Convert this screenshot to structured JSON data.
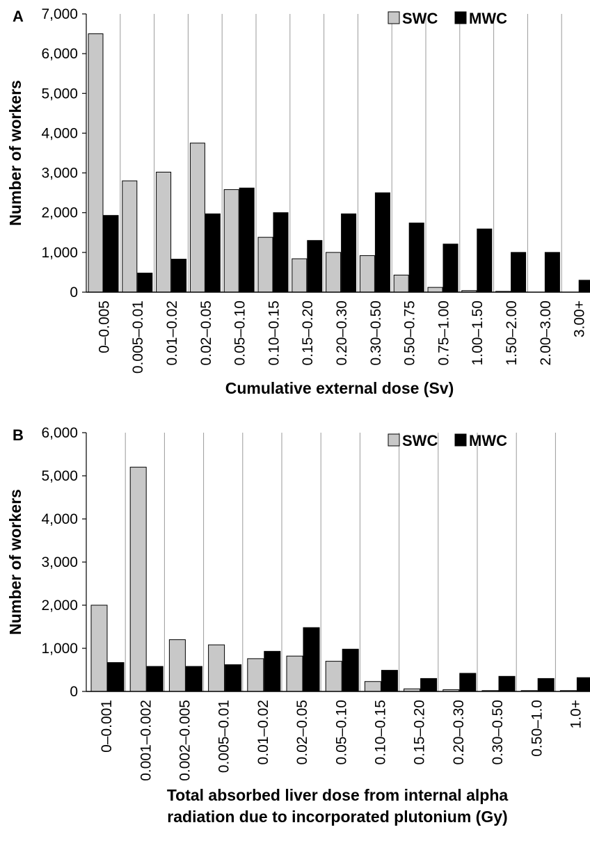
{
  "chart_data": [
    {
      "panel": "A",
      "type": "bar",
      "xlabel": "Cumulative external dose (Sv)",
      "ylabel": "Number of workers",
      "ylim": [
        0,
        7000
      ],
      "yticks": [
        "0",
        "1,000",
        "2,000",
        "3,000",
        "4,000",
        "5,000",
        "6,000",
        "7,000"
      ],
      "grid": "vertical lines between categories",
      "legend_position": "top-right",
      "categories": [
        "0–0.005",
        "0.005–0.01",
        "0.01–0.02",
        "0.02–0.05",
        "0.05–0.10",
        "0.10–0.15",
        "0.15–0.20",
        "0.20–0.30",
        "0.30–0.50",
        "0.50–0.75",
        "0.75–1.00",
        "1.00–1.50",
        "1.50–2.00",
        "2.00–3.00",
        "3.00+"
      ],
      "series": [
        {
          "name": "SWC",
          "color": "#c8c8c8",
          "values": [
            6500,
            2800,
            3020,
            3750,
            2580,
            1380,
            840,
            1000,
            920,
            430,
            120,
            40,
            20,
            0,
            0
          ]
        },
        {
          "name": "MWC",
          "color": "#000000",
          "values": [
            1930,
            480,
            830,
            1970,
            2620,
            2000,
            1300,
            1970,
            2500,
            1740,
            1210,
            1590,
            1000,
            1000,
            300
          ]
        }
      ]
    },
    {
      "panel": "B",
      "type": "bar",
      "xlabel": [
        "Total absorbed liver dose from internal alpha",
        "radiation due to incorporated plutonium (Gy)"
      ],
      "ylabel": "Number of workers",
      "ylim": [
        0,
        6000
      ],
      "yticks": [
        "0",
        "1,000",
        "2,000",
        "3,000",
        "4,000",
        "5,000",
        "6,000"
      ],
      "grid": "vertical lines between categories",
      "legend_position": "top-right",
      "categories": [
        "0–0.001",
        "0.001–0.002",
        "0.002–0.005",
        "0.005–0.01",
        "0.01–0.02",
        "0.02–0.05",
        "0.05–0.10",
        "0.10–0.15",
        "0.15–0.20",
        "0.20–0.30",
        "0.30–0.50",
        "0.50–1.0",
        "1.0+"
      ],
      "series": [
        {
          "name": "SWC",
          "color": "#c8c8c8",
          "values": [
            2000,
            5200,
            1200,
            1080,
            760,
            820,
            700,
            230,
            60,
            40,
            20,
            20,
            20
          ]
        },
        {
          "name": "MWC",
          "color": "#000000",
          "values": [
            670,
            580,
            580,
            620,
            930,
            1480,
            980,
            490,
            300,
            420,
            350,
            300,
            320
          ]
        }
      ]
    }
  ]
}
